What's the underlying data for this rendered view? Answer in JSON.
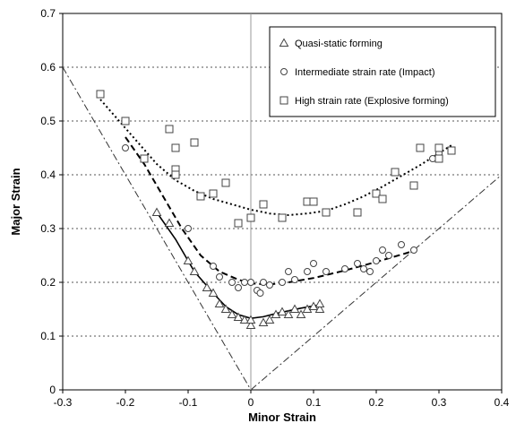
{
  "chart_data": {
    "type": "scatter",
    "xlabel": "Minor Strain",
    "ylabel": "Major Strain",
    "xlim": [
      -0.3,
      0.4
    ],
    "ylim": [
      0,
      0.7
    ],
    "x_ticks": [
      "-0.3",
      "-0.2",
      "-0.1",
      "0",
      "0.1",
      "0.2",
      "0.3",
      "0.4"
    ],
    "y_ticks": [
      "0",
      "0.1",
      "0.2",
      "0.3",
      "0.4",
      "0.5",
      "0.6",
      "0.7"
    ],
    "grid": "horizontal dotted",
    "legend_position": "top-right",
    "series": [
      {
        "name": "Quasi-static forming",
        "marker": "triangle",
        "points": [
          [
            -0.15,
            0.33
          ],
          [
            -0.13,
            0.31
          ],
          [
            -0.1,
            0.24
          ],
          [
            -0.09,
            0.22
          ],
          [
            -0.07,
            0.19
          ],
          [
            -0.06,
            0.18
          ],
          [
            -0.05,
            0.16
          ],
          [
            -0.04,
            0.15
          ],
          [
            -0.03,
            0.14
          ],
          [
            -0.02,
            0.135
          ],
          [
            -0.01,
            0.13
          ],
          [
            0.0,
            0.12
          ],
          [
            0.0,
            0.13
          ],
          [
            0.02,
            0.125
          ],
          [
            0.03,
            0.13
          ],
          [
            0.04,
            0.14
          ],
          [
            0.05,
            0.145
          ],
          [
            0.06,
            0.14
          ],
          [
            0.07,
            0.15
          ],
          [
            0.08,
            0.14
          ],
          [
            0.09,
            0.15
          ],
          [
            0.1,
            0.155
          ],
          [
            0.11,
            0.15
          ],
          [
            0.11,
            0.16
          ]
        ]
      },
      {
        "name": "Intermediate strain rate (Impact)",
        "marker": "circle",
        "points": [
          [
            -0.2,
            0.45
          ],
          [
            -0.1,
            0.3
          ],
          [
            -0.06,
            0.23
          ],
          [
            -0.05,
            0.21
          ],
          [
            -0.03,
            0.2
          ],
          [
            -0.02,
            0.19
          ],
          [
            -0.01,
            0.2
          ],
          [
            0.0,
            0.2
          ],
          [
            0.01,
            0.185
          ],
          [
            0.015,
            0.18
          ],
          [
            0.02,
            0.2
          ],
          [
            0.03,
            0.195
          ],
          [
            0.05,
            0.2
          ],
          [
            0.06,
            0.22
          ],
          [
            0.07,
            0.205
          ],
          [
            0.09,
            0.22
          ],
          [
            0.1,
            0.235
          ],
          [
            0.12,
            0.22
          ],
          [
            0.15,
            0.225
          ],
          [
            0.17,
            0.235
          ],
          [
            0.18,
            0.225
          ],
          [
            0.19,
            0.22
          ],
          [
            0.2,
            0.24
          ],
          [
            0.21,
            0.26
          ],
          [
            0.22,
            0.25
          ],
          [
            0.24,
            0.27
          ],
          [
            0.26,
            0.26
          ],
          [
            0.29,
            0.43
          ],
          [
            0.3,
            0.44
          ]
        ]
      },
      {
        "name": "High strain rate (Explosive forming)",
        "marker": "square",
        "points": [
          [
            -0.24,
            0.55
          ],
          [
            -0.2,
            0.5
          ],
          [
            -0.17,
            0.43
          ],
          [
            -0.13,
            0.485
          ],
          [
            -0.12,
            0.45
          ],
          [
            -0.12,
            0.41
          ],
          [
            -0.12,
            0.4
          ],
          [
            -0.09,
            0.46
          ],
          [
            -0.08,
            0.36
          ],
          [
            -0.06,
            0.365
          ],
          [
            -0.04,
            0.385
          ],
          [
            -0.02,
            0.31
          ],
          [
            0.0,
            0.32
          ],
          [
            0.02,
            0.345
          ],
          [
            0.05,
            0.32
          ],
          [
            0.09,
            0.35
          ],
          [
            0.1,
            0.35
          ],
          [
            0.12,
            0.33
          ],
          [
            0.17,
            0.33
          ],
          [
            0.2,
            0.365
          ],
          [
            0.21,
            0.355
          ],
          [
            0.23,
            0.405
          ],
          [
            0.26,
            0.38
          ],
          [
            0.27,
            0.45
          ],
          [
            0.3,
            0.45
          ],
          [
            0.3,
            0.43
          ],
          [
            0.32,
            0.445
          ]
        ]
      }
    ],
    "trend_lines": [
      {
        "series": "Quasi-static forming",
        "style": "solid",
        "points": [
          [
            -0.15,
            0.33
          ],
          [
            -0.12,
            0.28
          ],
          [
            -0.09,
            0.22
          ],
          [
            -0.06,
            0.18
          ],
          [
            -0.04,
            0.155
          ],
          [
            -0.02,
            0.14
          ],
          [
            0.0,
            0.133
          ],
          [
            0.02,
            0.136
          ],
          [
            0.04,
            0.142
          ],
          [
            0.06,
            0.147
          ],
          [
            0.08,
            0.152
          ],
          [
            0.11,
            0.158
          ]
        ]
      },
      {
        "series": "Intermediate strain rate (Impact)",
        "style": "dashed",
        "points": [
          [
            -0.2,
            0.47
          ],
          [
            -0.17,
            0.42
          ],
          [
            -0.14,
            0.36
          ],
          [
            -0.11,
            0.3
          ],
          [
            -0.08,
            0.25
          ],
          [
            -0.05,
            0.22
          ],
          [
            -0.02,
            0.205
          ],
          [
            0.0,
            0.198
          ],
          [
            0.03,
            0.196
          ],
          [
            0.06,
            0.2
          ],
          [
            0.1,
            0.208
          ],
          [
            0.15,
            0.222
          ],
          [
            0.2,
            0.238
          ],
          [
            0.25,
            0.255
          ],
          [
            0.26,
            0.26
          ]
        ]
      },
      {
        "series": "High strain rate (Explosive forming)",
        "style": "dotted",
        "points": [
          [
            -0.24,
            0.54
          ],
          [
            -0.21,
            0.5
          ],
          [
            -0.18,
            0.46
          ],
          [
            -0.15,
            0.42
          ],
          [
            -0.12,
            0.39
          ],
          [
            -0.09,
            0.37
          ],
          [
            -0.06,
            0.355
          ],
          [
            -0.03,
            0.345
          ],
          [
            0.0,
            0.335
          ],
          [
            0.03,
            0.328
          ],
          [
            0.06,
            0.325
          ],
          [
            0.09,
            0.328
          ],
          [
            0.12,
            0.333
          ],
          [
            0.15,
            0.345
          ],
          [
            0.18,
            0.36
          ],
          [
            0.21,
            0.378
          ],
          [
            0.24,
            0.398
          ],
          [
            0.27,
            0.418
          ],
          [
            0.3,
            0.44
          ],
          [
            0.32,
            0.455
          ]
        ]
      }
    ],
    "reference_lines": [
      {
        "style": "dash-dot",
        "points": [
          [
            -0.3,
            0.6
          ],
          [
            0.0,
            0.0
          ]
        ]
      },
      {
        "style": "dash-dot",
        "points": [
          [
            0.0,
            0.0
          ],
          [
            0.4,
            0.4
          ]
        ]
      }
    ]
  }
}
